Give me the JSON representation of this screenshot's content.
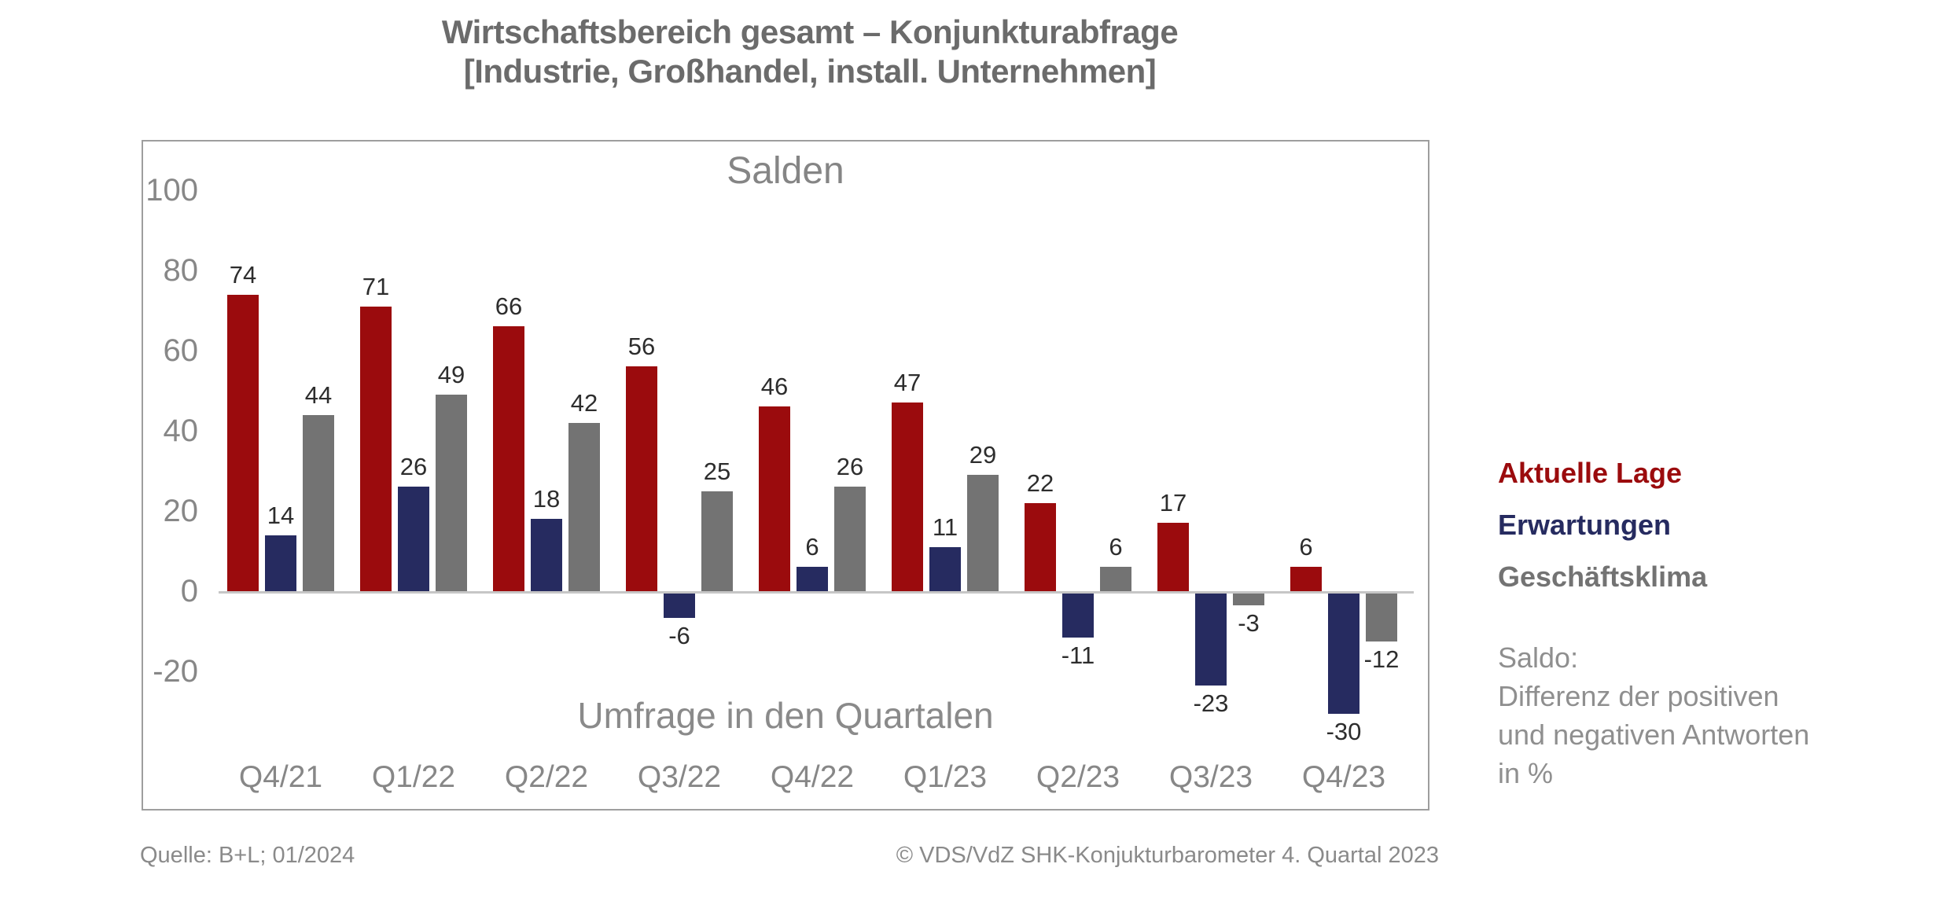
{
  "title": {
    "line1": "Wirtschaftsbereich gesamt – Konjunkturabfrage",
    "line2": "[Industrie, Großhandel, install. Unternehmen]"
  },
  "chart_data": {
    "type": "bar",
    "title": "Salden",
    "xlabel": "Umfrage in den Quartalen",
    "ylabel": "",
    "categories": [
      "Q4/21",
      "Q1/22",
      "Q2/22",
      "Q3/22",
      "Q4/22",
      "Q1/23",
      "Q2/23",
      "Q3/23",
      "Q4/23"
    ],
    "series": [
      {
        "name": "Aktuelle Lage",
        "color": "#9B0B0D",
        "values": [
          74,
          71,
          66,
          56,
          46,
          47,
          22,
          17,
          6
        ]
      },
      {
        "name": "Erwartungen",
        "color": "#262B60",
        "values": [
          14,
          26,
          18,
          -6,
          6,
          11,
          -11,
          -23,
          -30
        ]
      },
      {
        "name": "Geschäftsklima",
        "color": "#737373",
        "values": [
          44,
          49,
          42,
          25,
          26,
          29,
          6,
          -3,
          -12
        ]
      }
    ],
    "y_ticks": [
      100,
      80,
      60,
      40,
      20,
      0,
      -20
    ],
    "ylim": [
      -38,
      105
    ],
    "grid": false,
    "data_labels": true,
    "legend_position": "right"
  },
  "legend": {
    "note_lines": [
      "Saldo:",
      "Differenz der positiven",
      "und negativen Antworten",
      "in %"
    ]
  },
  "footer": {
    "source": "Quelle: B+L; 01/2024",
    "copyright": "© VDS/VdZ SHK-Konjukturbarometer 4. Quartal 2023"
  }
}
